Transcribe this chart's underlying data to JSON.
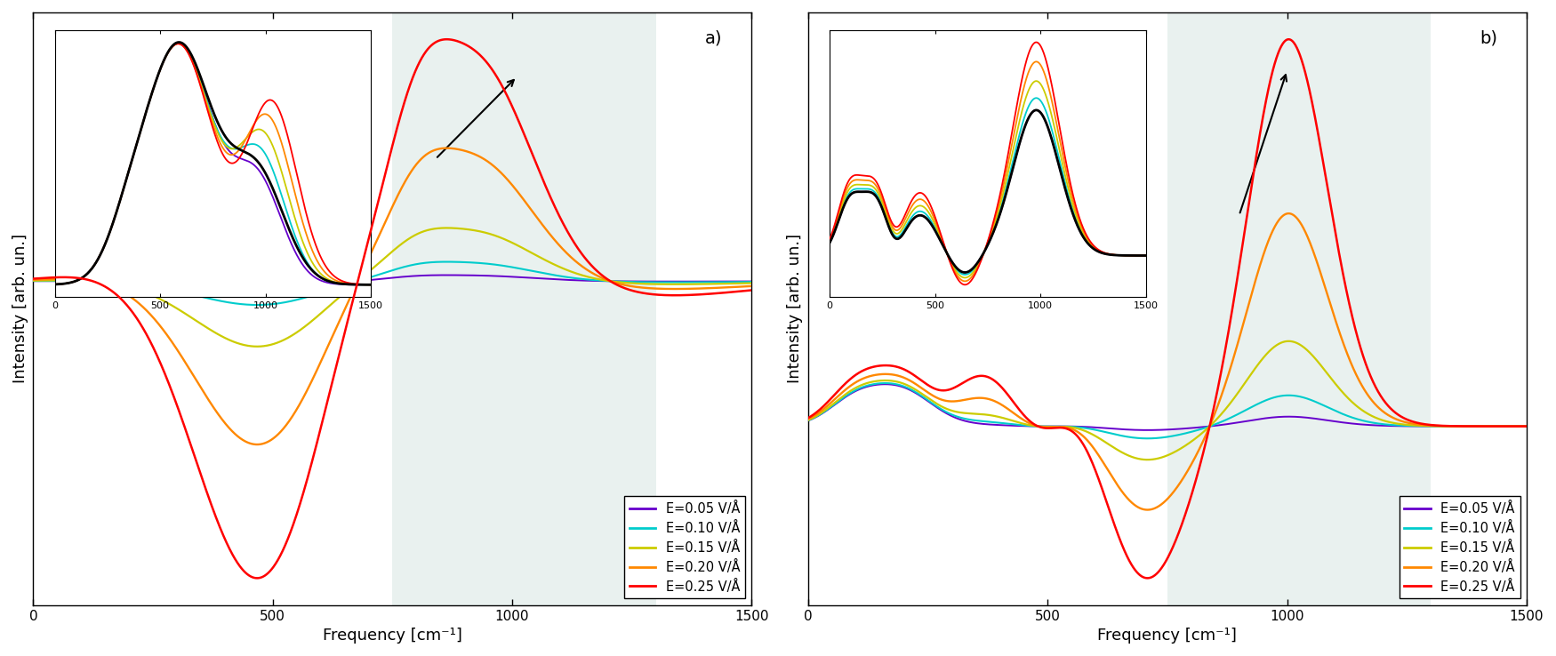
{
  "colors_list": [
    "#6600CC",
    "#00CCCC",
    "#CCCC00",
    "#FF8800",
    "#FF0000"
  ],
  "legend_labels": [
    "E=0.05 V/Å",
    "E=0.10 V/Å",
    "E=0.15 V/Å",
    "E=0.20 V/Å",
    "E=0.25 V/Å"
  ],
  "xlim": [
    0,
    1500
  ],
  "xlabel": "Frequency [cm⁻¹]",
  "ylabel": "Intensity [arb. un.]",
  "shade_region": [
    750,
    1300
  ],
  "shade_color": "#c8ddd8",
  "panel_labels": [
    "a)",
    "b)"
  ],
  "background_color": "#ffffff",
  "fields": [
    0.05,
    0.1,
    0.15,
    0.2,
    0.25
  ]
}
